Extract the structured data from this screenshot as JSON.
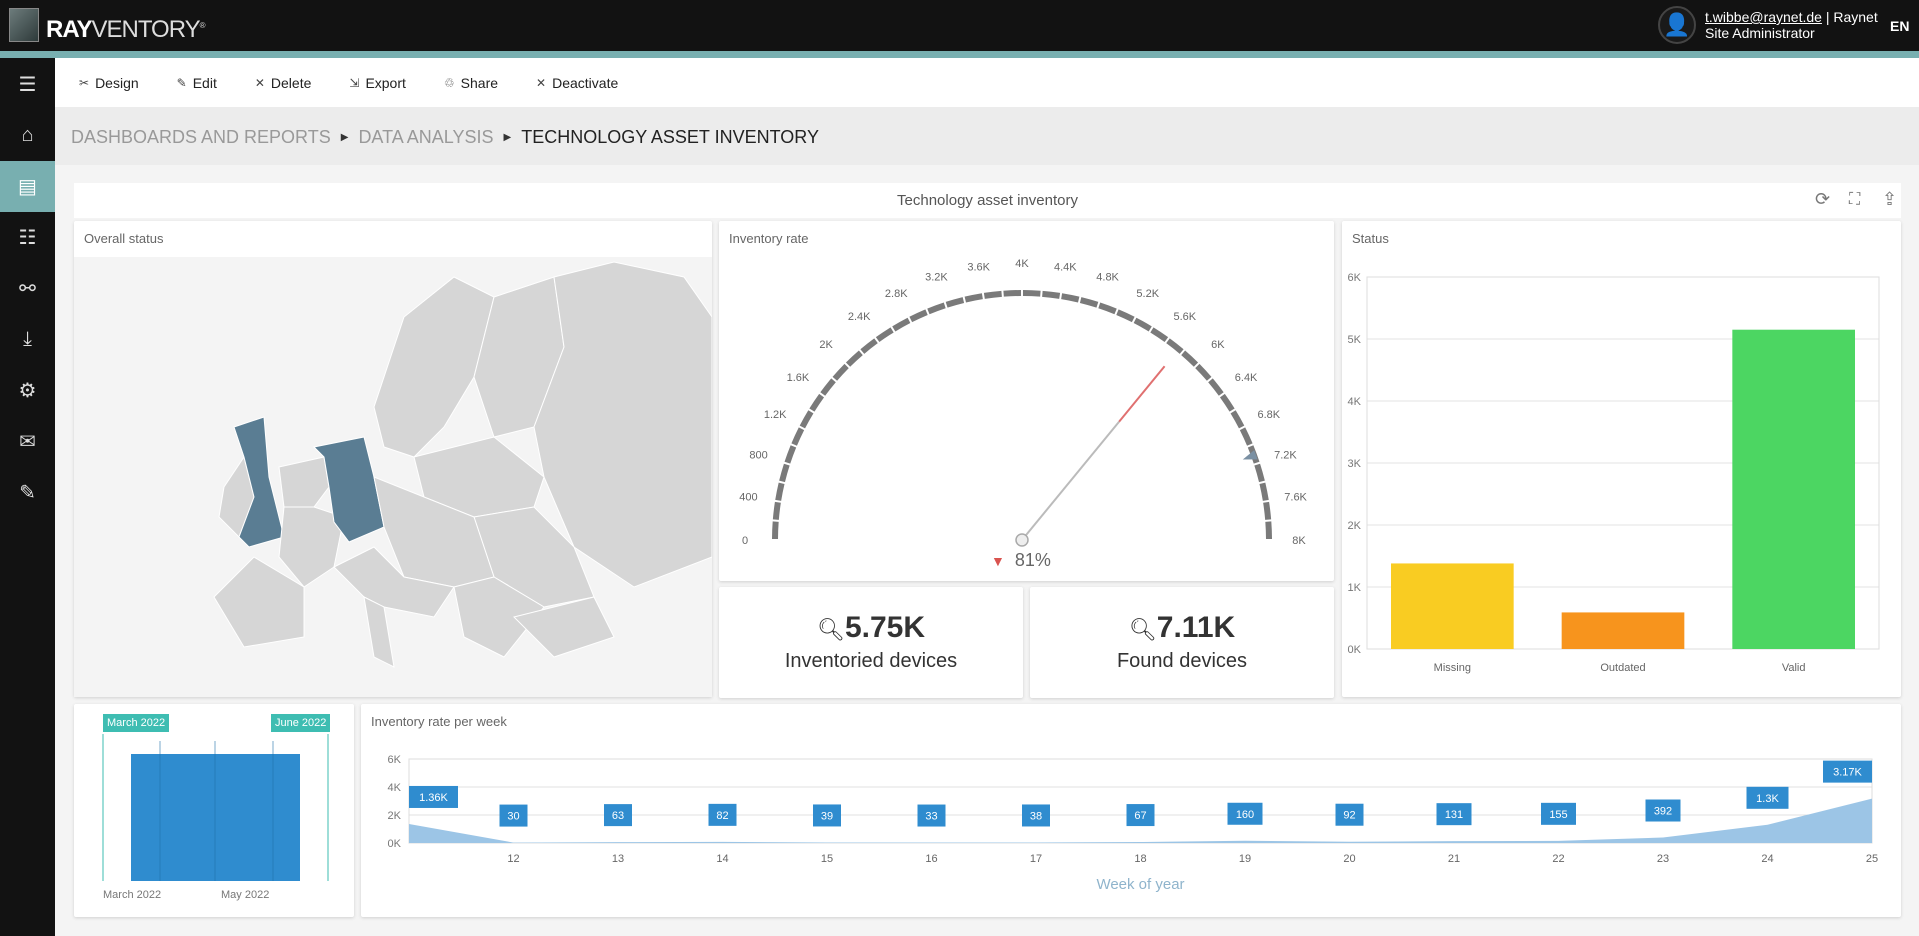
{
  "app": {
    "logo_bold": "RAY",
    "logo_rest": "VENTORY",
    "logo_mark": "®"
  },
  "user": {
    "email": "t.wibbe@raynet.de",
    "org": "| Raynet",
    "role": "Site Administrator",
    "language": "EN"
  },
  "sidebar": {
    "items": [
      {
        "icon": "menu-icon",
        "glyph": "☰"
      },
      {
        "icon": "home-icon",
        "glyph": "⌂"
      },
      {
        "icon": "dashboard-icon",
        "glyph": "▤",
        "active": true
      },
      {
        "icon": "list-icon",
        "glyph": "☷"
      },
      {
        "icon": "shapes-icon",
        "glyph": "⚯"
      },
      {
        "icon": "download-icon",
        "glyph": "⤓"
      },
      {
        "icon": "user-settings-icon",
        "glyph": "⚙"
      },
      {
        "icon": "mail-send-icon",
        "glyph": "✉"
      },
      {
        "icon": "document-edit-icon",
        "glyph": "✎"
      }
    ]
  },
  "toolbar": [
    {
      "label": "Design",
      "glyph": "✂"
    },
    {
      "label": "Edit",
      "glyph": "✎"
    },
    {
      "label": "Delete",
      "glyph": "✕"
    },
    {
      "label": "Export",
      "glyph": "⇲"
    },
    {
      "label": "Share",
      "glyph": "♲"
    },
    {
      "label": "Deactivate",
      "glyph": "✕"
    }
  ],
  "breadcrumb": [
    "DASHBOARDS AND REPORTS",
    "DATA ANALYSIS",
    "TECHNOLOGY ASSET INVENTORY"
  ],
  "dashboard": {
    "title": "Technology asset inventory",
    "icons": [
      "refresh-icon",
      "fullscreen-icon",
      "export-icon"
    ]
  },
  "map": {
    "title": "Overall status",
    "base_color": "#d6d6d6",
    "highlight_color": "#5a7d93"
  },
  "gauge": {
    "title": "Inventory rate",
    "min": 0,
    "max": 8000,
    "value": 5750,
    "target": 7110,
    "delta_label": "81%",
    "ticks": [
      "0",
      "400",
      "800",
      "1.2K",
      "1.6K",
      "2K",
      "2.4K",
      "2.8K",
      "3.2K",
      "3.6K",
      "4K",
      "4.4K",
      "4.8K",
      "5.2K",
      "5.6K",
      "6K",
      "6.4K",
      "6.8K",
      "7.2K",
      "7.6K",
      "8K"
    ],
    "delta_color": "#d9534f"
  },
  "kpis": [
    {
      "value": "5.75K",
      "label": "Inventoried devices"
    },
    {
      "value": "7.11K",
      "label": "Found devices"
    }
  ],
  "range": {
    "start_label": "March 2022",
    "end_label": "June 2022",
    "axis_labels": [
      "March 2022",
      "May 2022"
    ],
    "color": "#3ebdb2",
    "bar_color": "#2f8ccf"
  },
  "chart_data": [
    {
      "type": "bar",
      "title": "Status",
      "categories": [
        "Missing",
        "Outdated",
        "Valid"
      ],
      "values": [
        1380,
        590,
        5150
      ],
      "colors": [
        "#f9cc22",
        "#f7941d",
        "#4cd662"
      ],
      "ylim": [
        0,
        6000
      ],
      "yticks": [
        "0K",
        "1K",
        "2K",
        "3K",
        "4K",
        "5K",
        "6K"
      ],
      "grid": true
    },
    {
      "type": "area",
      "title": "Inventory rate per week",
      "xlabel": "Week of year",
      "x": [
        11,
        12,
        13,
        14,
        15,
        16,
        17,
        18,
        19,
        20,
        21,
        22,
        23,
        24,
        25
      ],
      "values": [
        1360,
        30,
        63,
        82,
        39,
        33,
        38,
        67,
        160,
        92,
        131,
        155,
        392,
        1300,
        3170
      ],
      "labels": [
        "1.36K",
        "30",
        "63",
        "82",
        "39",
        "33",
        "38",
        "67",
        "160",
        "92",
        "131",
        "155",
        "392",
        "1.3K",
        "3.17K"
      ],
      "xticks": [
        "12",
        "13",
        "14",
        "15",
        "16",
        "17",
        "18",
        "19",
        "20",
        "21",
        "22",
        "23",
        "24",
        "25"
      ],
      "ylim": [
        0,
        6000
      ],
      "yticks": [
        "0K",
        "2K",
        "4K",
        "6K"
      ],
      "color": "#9cc5e6",
      "label_color": "#2f8ccf",
      "grid": true
    }
  ]
}
